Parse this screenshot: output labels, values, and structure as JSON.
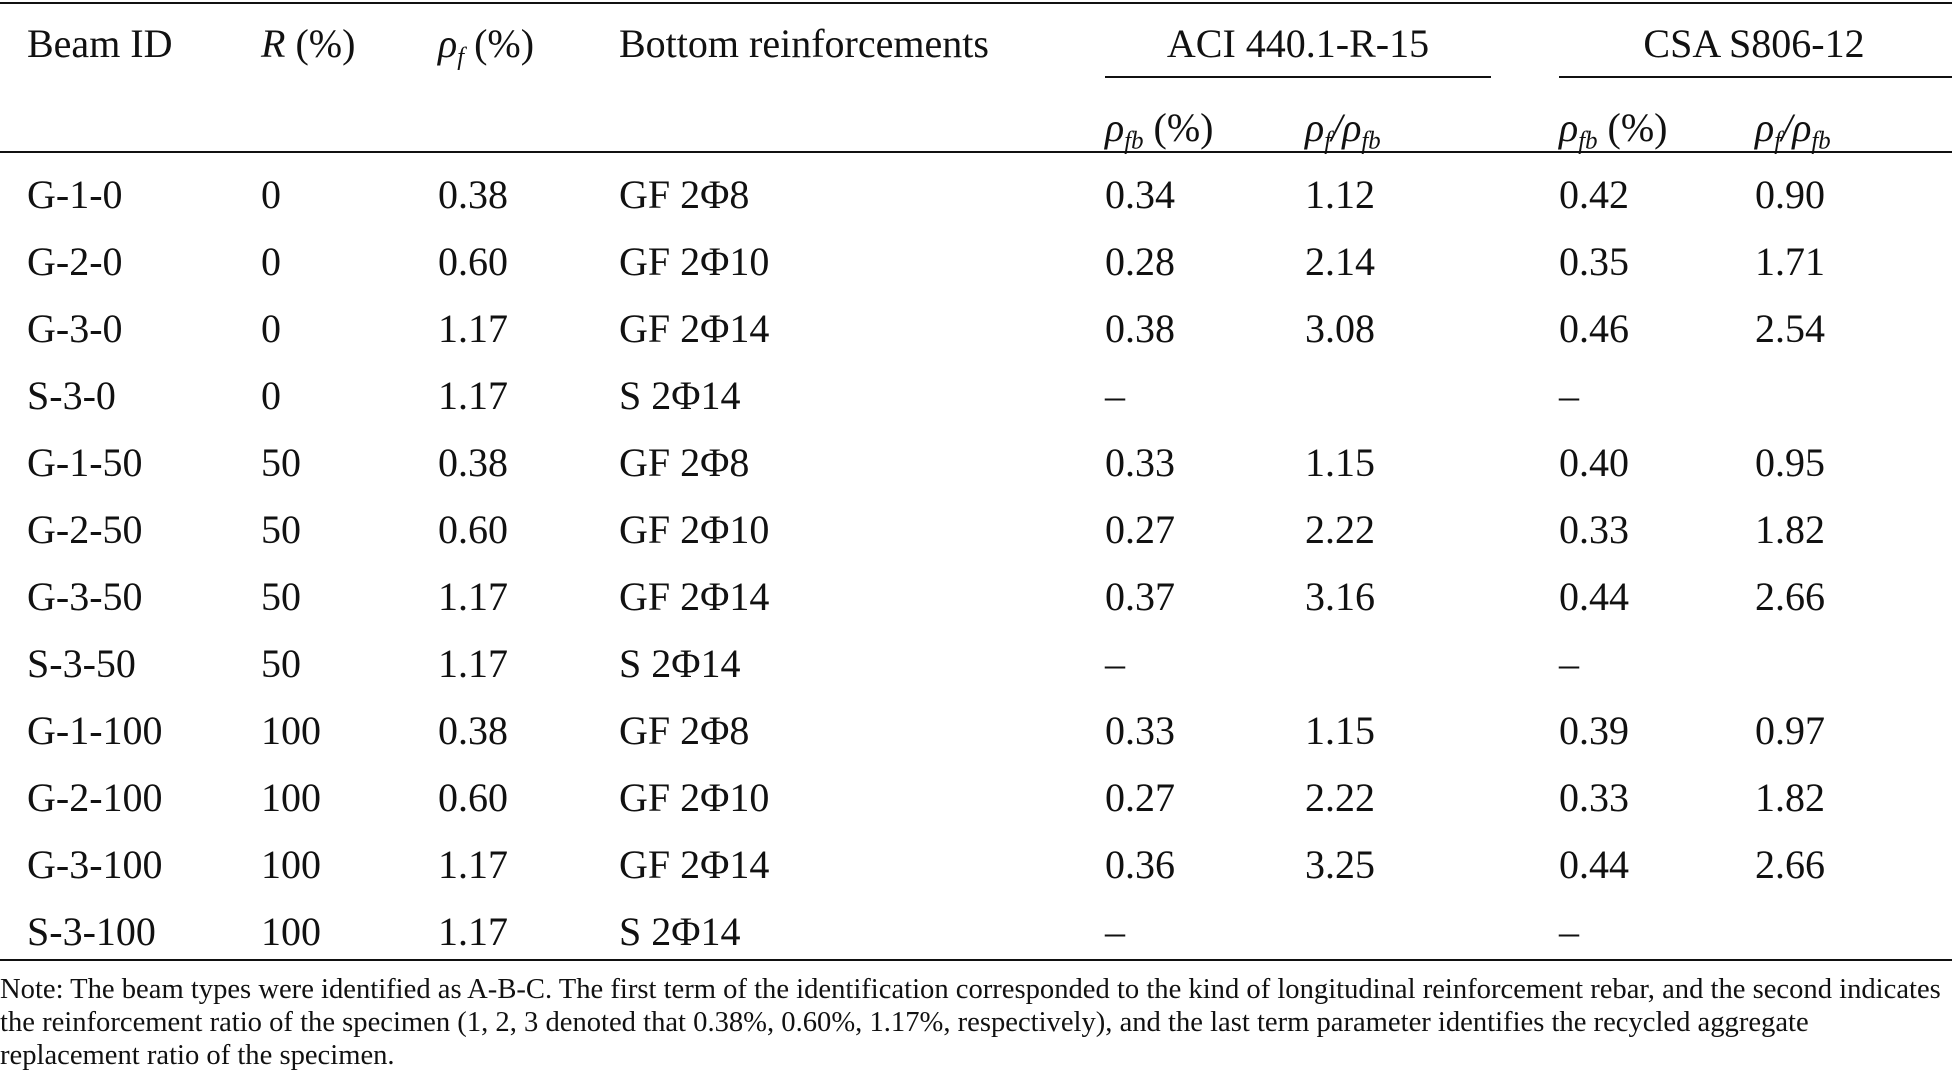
{
  "table": {
    "headers": [
      {
        "text": "Beam ID"
      },
      {
        "symbol": "R",
        "unit": "(%)"
      },
      {
        "symbol": "ρ",
        "sub": "f",
        "unit": "(%)"
      },
      {
        "text": "Bottom reinforcements"
      }
    ],
    "groups": [
      {
        "title": "ACI 440.1-R-15",
        "columns": [
          {
            "symbol": "ρ",
            "sub": "fb",
            "unit": "(%)"
          },
          {
            "symbol": "ρ",
            "sub": "f",
            "sep": "/",
            "symbol2": "ρ",
            "sub2": "fb"
          }
        ]
      },
      {
        "title": "CSA S806-12",
        "columns": [
          {
            "symbol": "ρ",
            "sub": "fb",
            "unit": "(%)"
          },
          {
            "symbol": "ρ",
            "sub": "f",
            "sep": "/",
            "symbol2": "ρ",
            "sub2": "fb"
          }
        ]
      }
    ],
    "rows": [
      [
        "G-1-0",
        "0",
        "0.38",
        "GF 2Φ8",
        "0.34",
        "1.12",
        "0.42",
        "0.90"
      ],
      [
        "G-2-0",
        "0",
        "0.60",
        "GF 2Φ10",
        "0.28",
        "2.14",
        "0.35",
        "1.71"
      ],
      [
        "G-3-0",
        "0",
        "1.17",
        "GF 2Φ14",
        "0.38",
        "3.08",
        "0.46",
        "2.54"
      ],
      [
        "S-3-0",
        "0",
        "1.17",
        "S 2Φ14",
        "–",
        null,
        "–",
        null
      ],
      [
        "G-1-50",
        "50",
        "0.38",
        "GF 2Φ8",
        "0.33",
        "1.15",
        "0.40",
        "0.95"
      ],
      [
        "G-2-50",
        "50",
        "0.60",
        "GF 2Φ10",
        "0.27",
        "2.22",
        "0.33",
        "1.82"
      ],
      [
        "G-3-50",
        "50",
        "1.17",
        "GF 2Φ14",
        "0.37",
        "3.16",
        "0.44",
        "2.66"
      ],
      [
        "S-3-50",
        "50",
        "1.17",
        "S 2Φ14",
        "–",
        null,
        "–",
        null
      ],
      [
        "G-1-100",
        "100",
        "0.38",
        "GF 2Φ8",
        "0.33",
        "1.15",
        "0.39",
        "0.97"
      ],
      [
        "G-2-100",
        "100",
        "0.60",
        "GF 2Φ10",
        "0.27",
        "2.22",
        "0.33",
        "1.82"
      ],
      [
        "G-3-100",
        "100",
        "1.17",
        "GF 2Φ14",
        "0.36",
        "3.25",
        "0.44",
        "2.66"
      ],
      [
        "S-3-100",
        "100",
        "1.17",
        "S 2Φ14",
        "–",
        null,
        "–",
        null
      ]
    ],
    "note": "Note: The beam types were identified as A-B-C. The first term of the identification corresponded to the kind of longitudinal reinforcement rebar, and the second indicates the reinforcement ratio of the specimen (1, 2, 3 denoted that 0.38%, 0.60%, 1.17%, respectively), and the last term parameter identifies the recycled aggregate replacement ratio of the specimen."
  }
}
